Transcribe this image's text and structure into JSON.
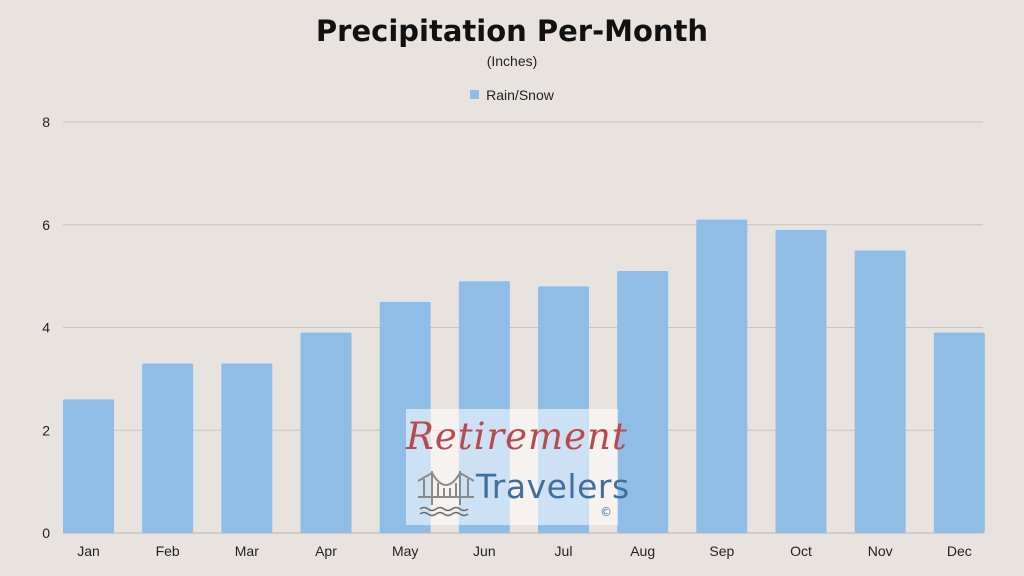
{
  "chart_data": {
    "type": "bar",
    "title": "Precipitation Per-Month",
    "subtitle": "(Inches)",
    "categories": [
      "Jan",
      "Feb",
      "Mar",
      "Apr",
      "May",
      "Jun",
      "Jul",
      "Aug",
      "Sep",
      "Oct",
      "Nov",
      "Dec"
    ],
    "series": [
      {
        "name": "Rain/Snow",
        "values": [
          2.6,
          3.3,
          3.3,
          3.9,
          4.5,
          4.9,
          4.8,
          5.1,
          6.1,
          5.9,
          5.5,
          3.9
        ],
        "color": "#8fbde6"
      }
    ],
    "ylim": [
      0,
      8
    ],
    "yticks": [
      "0",
      "2",
      "4",
      "6",
      "8"
    ],
    "grid": true,
    "legend_position": "top-center",
    "gridline_color": "#c9c4bf",
    "background_color": "#e8e3de"
  },
  "watermark": {
    "line1": "Retirement",
    "line2": "Travelers",
    "mark": "©",
    "icon": "bridge-icon",
    "color1": "#b84a4f",
    "color2": "#3f6f9f"
  }
}
